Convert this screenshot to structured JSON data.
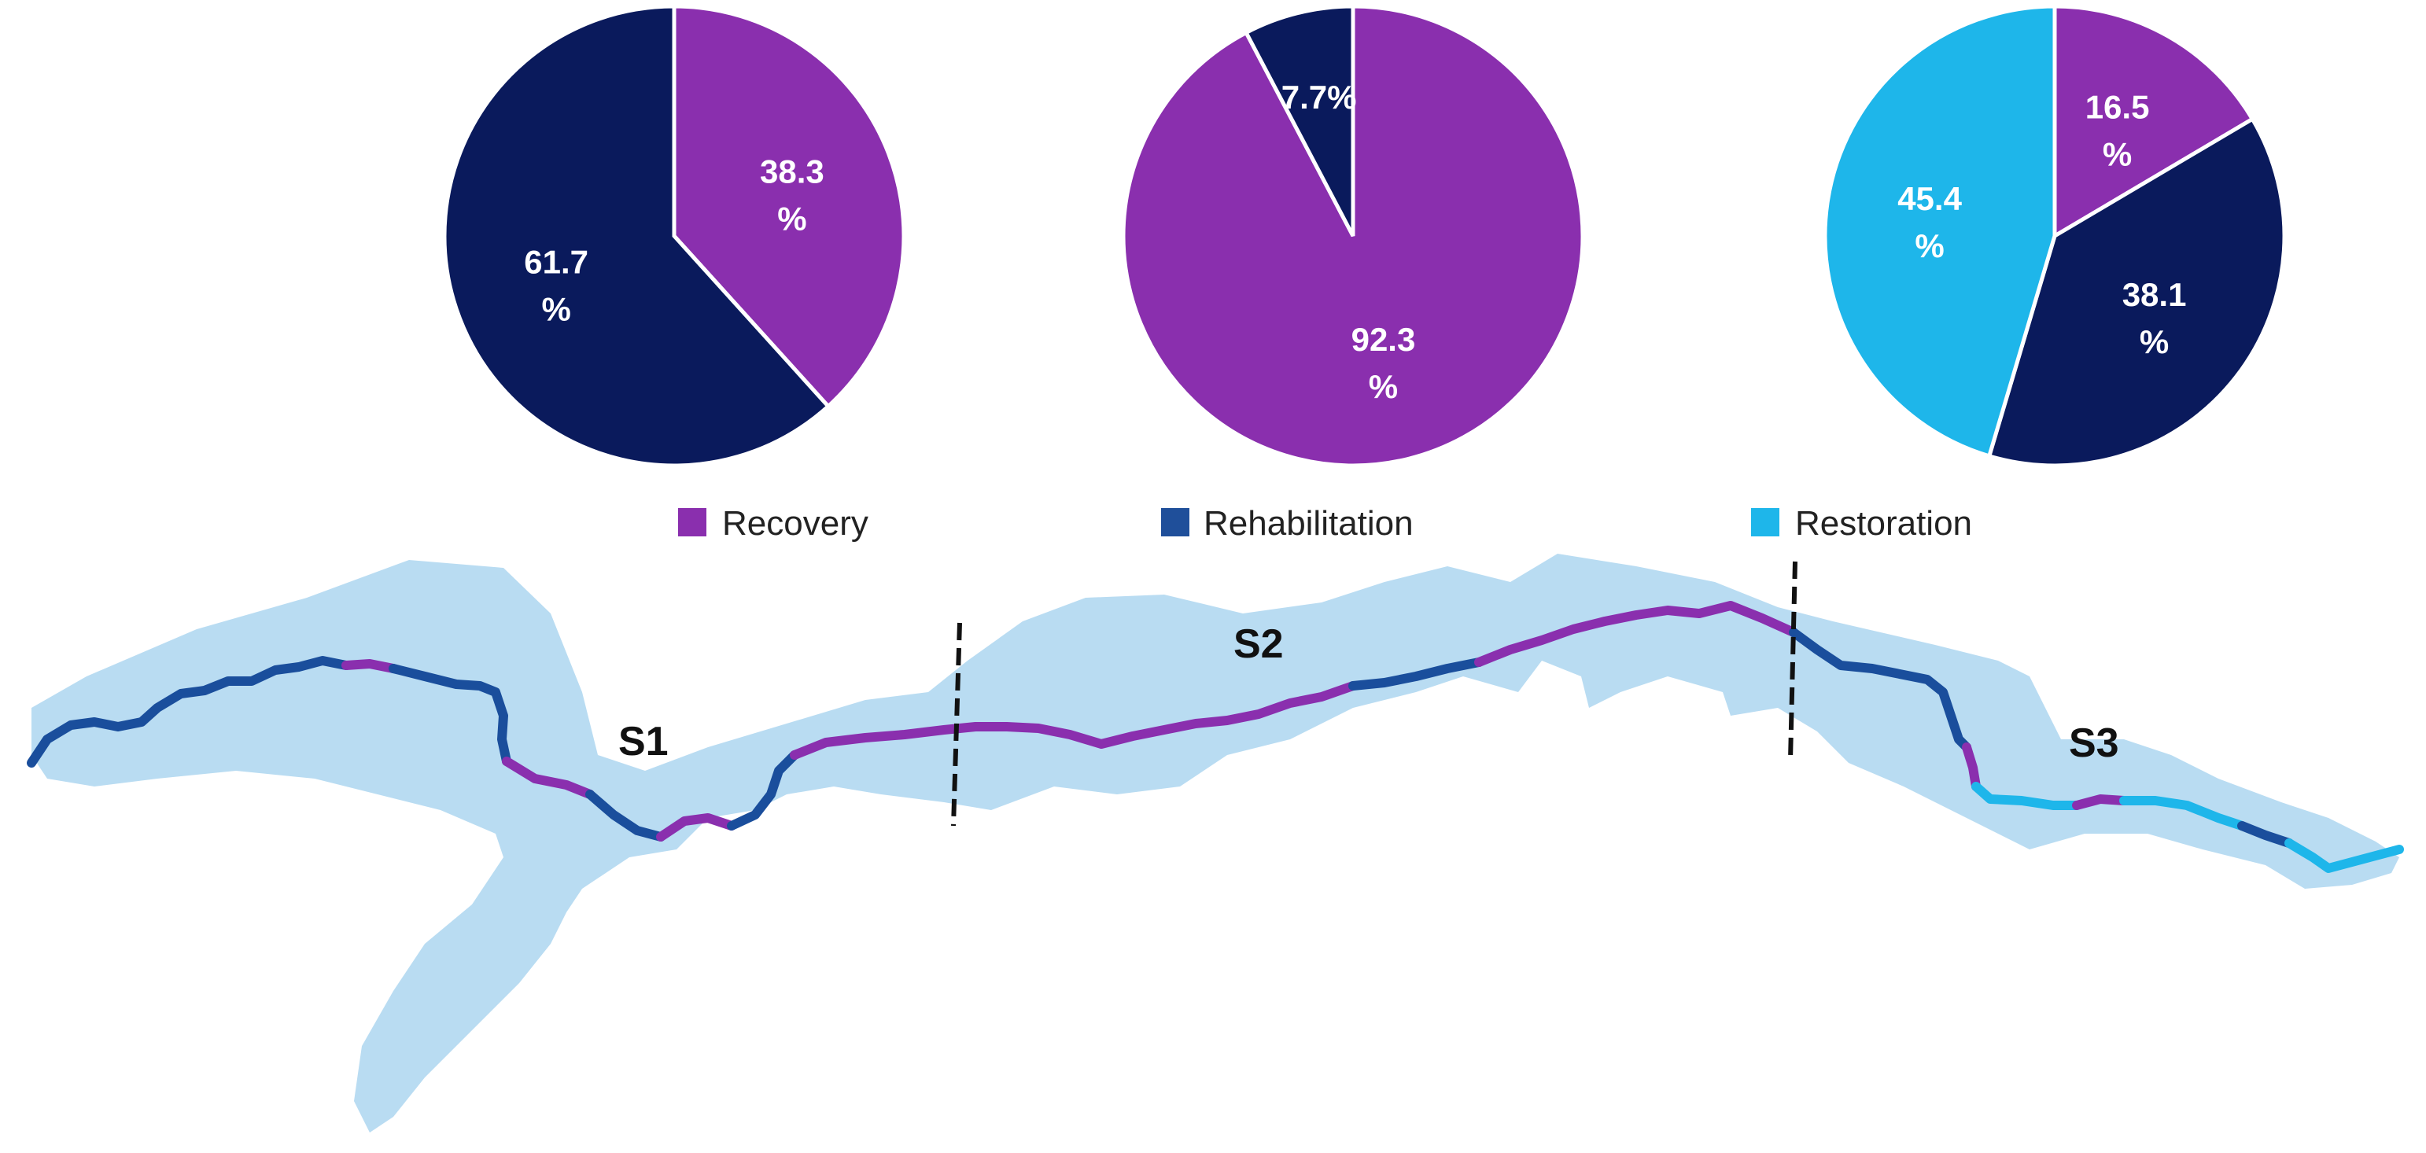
{
  "colors": {
    "recovery": "#8a2fae",
    "rehabilitation": "#0a1a5c",
    "rehabilitation_swatch": "#1f4f9a",
    "restoration": "#1eb6ea",
    "river_buffer": "#b9dcf2",
    "river_blue": "#1a4e9c"
  },
  "legend": [
    {
      "label": "Recovery",
      "color": "#8a2fae"
    },
    {
      "label": "Rehabilitation",
      "color": "#1f4f9a"
    },
    {
      "label": "Restoration",
      "color": "#1eb6ea"
    }
  ],
  "segments": [
    {
      "name": "S1"
    },
    {
      "name": "S2"
    },
    {
      "name": "S3"
    }
  ],
  "chart_data": [
    {
      "type": "pie",
      "segment": "S1",
      "slices": [
        {
          "name": "Recovery",
          "value": 38.3,
          "label_line1": "38.3",
          "label_line2": "%",
          "color": "#8a2fae"
        },
        {
          "name": "Rehabilitation",
          "value": 61.7,
          "label_line1": "61.7",
          "label_line2": "%",
          "color": "#0a1a5c"
        }
      ]
    },
    {
      "type": "pie",
      "segment": "S2",
      "slices": [
        {
          "name": "Recovery",
          "value": 92.3,
          "label_line1": "92.3",
          "label_line2": "%",
          "color": "#8a2fae"
        },
        {
          "name": "Rehabilitation",
          "value": 7.7,
          "label_line1": "7.7%",
          "label_line2": "",
          "color": "#0a1a5c"
        }
      ]
    },
    {
      "type": "pie",
      "segment": "S3",
      "slices": [
        {
          "name": "Recovery",
          "value": 16.5,
          "label_line1": "16.5",
          "label_line2": "%",
          "color": "#8a2fae"
        },
        {
          "name": "Rehabilitation",
          "value": 38.1,
          "label_line1": "38.1",
          "label_line2": "%",
          "color": "#0a1a5c"
        },
        {
          "name": "Restoration",
          "value": 45.4,
          "label_line1": "45.4",
          "label_line2": "%",
          "color": "#1eb6ea"
        }
      ]
    }
  ]
}
